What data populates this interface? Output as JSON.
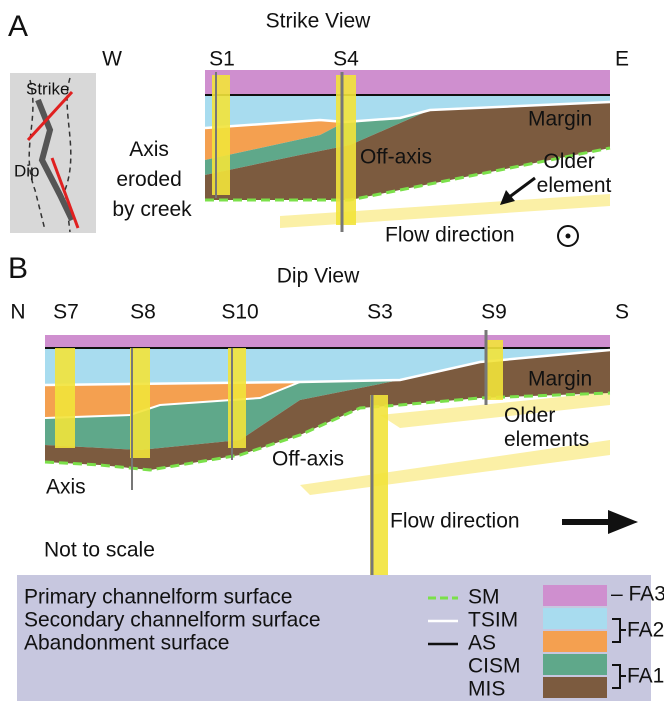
{
  "panel_a": {
    "label": "A",
    "title": "Strike View",
    "left": "W",
    "right": "E",
    "sections": [
      "S1",
      "S4"
    ],
    "inset": {
      "strike": "Strike",
      "dip": "Dip"
    },
    "axis_note": [
      "Axis",
      "eroded",
      "by creek"
    ],
    "margin": "Margin",
    "off_axis": "Off-axis",
    "older": [
      "Older",
      "element"
    ],
    "flow": "Flow direction"
  },
  "panel_b": {
    "label": "B",
    "title": "Dip View",
    "left": "N",
    "right": "S",
    "sections": [
      "S7",
      "S8",
      "S10",
      "S3",
      "S9"
    ],
    "margin": "Margin",
    "older": [
      "Older",
      "elements"
    ],
    "off_axis": "Off-axis",
    "axis": "Axis",
    "flow": "Flow direction",
    "scale_note": "Not to scale"
  },
  "legend": {
    "lines": [
      "Primary channelform surface",
      "Secondary channelform surface",
      "Abandonment surface"
    ],
    "surfaces": [
      "SM",
      "TSIM",
      "AS",
      "CISM",
      "MIS"
    ],
    "facies": [
      "– FA3",
      "FA2",
      "FA1"
    ]
  }
}
